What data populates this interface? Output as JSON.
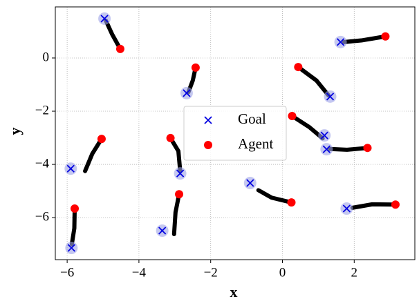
{
  "chart_data": {
    "type": "scatter",
    "xlabel": "x",
    "ylabel": "y",
    "xlim": [
      -6.33,
      3.69
    ],
    "ylim": [
      -7.58,
      1.92
    ],
    "xticks": [
      {
        "value": -6,
        "label": "−6"
      },
      {
        "value": -4,
        "label": "−4"
      },
      {
        "value": -2,
        "label": "−2"
      },
      0,
      2
    ],
    "yticks": [
      {
        "value": -6,
        "label": "−6"
      },
      {
        "value": -4,
        "label": "−4"
      },
      {
        "value": -2,
        "label": "−2"
      },
      0
    ],
    "grid": true,
    "legend_loc": "center",
    "halo_color": "#9fa3e8",
    "trajectory_color": "#000000",
    "series": [
      {
        "name": "Goal",
        "marker": "x",
        "color": "#0000e0",
        "x": [
          -4.96,
          -2.67,
          1.62,
          1.33,
          1.17,
          1.23,
          -5.9,
          -2.85,
          -0.9,
          -3.35,
          1.79,
          -5.88
        ],
        "y": [
          1.48,
          -1.32,
          0.6,
          -1.45,
          -2.91,
          -3.43,
          -4.16,
          -4.34,
          -4.7,
          -6.49,
          -5.66,
          -7.14
        ]
      },
      {
        "name": "Agent",
        "marker": "o",
        "color": "#ff0000",
        "x": [
          -4.52,
          -2.42,
          2.87,
          0.44,
          0.27,
          2.37,
          -5.04,
          -3.12,
          0.25,
          -2.88,
          3.15,
          -5.79
        ],
        "y": [
          0.34,
          -0.36,
          0.81,
          -0.34,
          -2.18,
          -3.38,
          -3.04,
          -3.01,
          -5.43,
          -5.12,
          -5.51,
          -5.66
        ]
      }
    ],
    "trajectories": [
      {
        "x": [
          -4.52,
          -4.75,
          -4.92
        ],
        "y": [
          0.34,
          0.9,
          1.4
        ]
      },
      {
        "x": [
          -2.42,
          -2.5,
          -2.62
        ],
        "y": [
          -0.36,
          -0.85,
          -1.28
        ]
      },
      {
        "x": [
          2.87,
          2.2,
          1.72
        ],
        "y": [
          0.81,
          0.66,
          0.6
        ]
      },
      {
        "x": [
          0.44,
          0.95,
          1.28
        ],
        "y": [
          -0.34,
          -0.85,
          -1.4
        ]
      },
      {
        "x": [
          0.27,
          0.75,
          1.12
        ],
        "y": [
          -2.18,
          -2.6,
          -3.02
        ]
      },
      {
        "x": [
          2.37,
          1.8,
          1.33
        ],
        "y": [
          -3.38,
          -3.45,
          -3.42
        ]
      },
      {
        "x": [
          -5.04,
          -5.3,
          -5.5
        ],
        "y": [
          -3.04,
          -3.6,
          -4.25
        ]
      },
      {
        "x": [
          -3.12,
          -2.9,
          -2.85
        ],
        "y": [
          -3.01,
          -3.5,
          -4.25
        ]
      },
      {
        "x": [
          0.25,
          -0.3,
          -0.67
        ],
        "y": [
          -5.43,
          -5.25,
          -4.97
        ]
      },
      {
        "x": [
          -2.88,
          -2.98,
          -3.02
        ],
        "y": [
          -5.12,
          -5.8,
          -6.62
        ]
      },
      {
        "x": [
          3.15,
          2.5,
          1.95
        ],
        "y": [
          -5.51,
          -5.5,
          -5.63
        ]
      },
      {
        "x": [
          -5.79,
          -5.8,
          -5.87
        ],
        "y": [
          -5.66,
          -6.4,
          -7.0
        ]
      }
    ]
  }
}
